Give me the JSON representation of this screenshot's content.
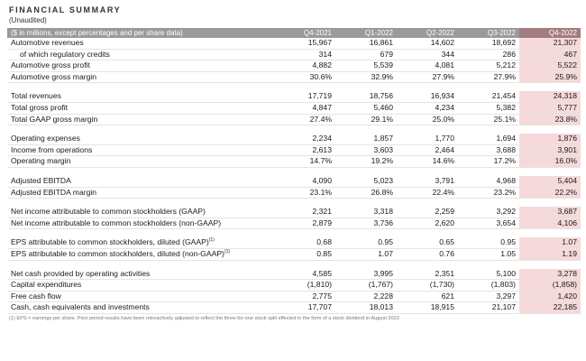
{
  "title": "FINANCIAL SUMMARY",
  "subtitle": "(Unaudited)",
  "header": {
    "label": "($ in millions, except percentages and per share data)",
    "periods": [
      "Q4-2021",
      "Q1-2022",
      "Q2-2022",
      "Q3-2022",
      "Q4-2022"
    ]
  },
  "groups": [
    {
      "rows": [
        {
          "label": "Automotive revenues",
          "values": [
            "15,967",
            "16,861",
            "14,602",
            "18,692",
            "21,307"
          ]
        },
        {
          "label": "of which regulatory credits",
          "indent": true,
          "values": [
            "314",
            "679",
            "344",
            "286",
            "467"
          ]
        },
        {
          "label": "Automotive gross profit",
          "values": [
            "4,882",
            "5,539",
            "4,081",
            "5,212",
            "5,522"
          ]
        },
        {
          "label": "Automotive gross margin",
          "values": [
            "30.6%",
            "32.9%",
            "27.9%",
            "27.9%",
            "25.9%"
          ]
        }
      ]
    },
    {
      "rows": [
        {
          "label": "Total revenues",
          "values": [
            "17,719",
            "18,756",
            "16,934",
            "21,454",
            "24,318"
          ]
        },
        {
          "label": "Total gross profit",
          "values": [
            "4,847",
            "5,460",
            "4,234",
            "5,382",
            "5,777"
          ]
        },
        {
          "label": "Total GAAP gross margin",
          "values": [
            "27.4%",
            "29.1%",
            "25.0%",
            "25.1%",
            "23.8%"
          ]
        }
      ]
    },
    {
      "rows": [
        {
          "label": "Operating expenses",
          "values": [
            "2,234",
            "1,857",
            "1,770",
            "1,694",
            "1,876"
          ]
        },
        {
          "label": "Income from operations",
          "values": [
            "2,613",
            "3,603",
            "2,464",
            "3,688",
            "3,901"
          ]
        },
        {
          "label": "Operating margin",
          "values": [
            "14.7%",
            "19.2%",
            "14.6%",
            "17.2%",
            "16.0%"
          ]
        }
      ]
    },
    {
      "rows": [
        {
          "label": "Adjusted EBITDA",
          "values": [
            "4,090",
            "5,023",
            "3,791",
            "4,968",
            "5,404"
          ]
        },
        {
          "label": "Adjusted EBITDA margin",
          "values": [
            "23.1%",
            "26.8%",
            "22.4%",
            "23.2%",
            "22.2%"
          ]
        }
      ]
    },
    {
      "rows": [
        {
          "label": "Net income attributable to common stockholders (GAAP)",
          "values": [
            "2,321",
            "3,318",
            "2,259",
            "3,292",
            "3,687"
          ]
        },
        {
          "label": "Net income attributable to common stockholders (non-GAAP)",
          "values": [
            "2,879",
            "3,736",
            "2,620",
            "3,654",
            "4,106"
          ]
        }
      ]
    },
    {
      "rows": [
        {
          "label": "EPS attributable to common stockholders, diluted (GAAP)",
          "sup": "(1)",
          "values": [
            "0.68",
            "0.95",
            "0.65",
            "0.95",
            "1.07"
          ]
        },
        {
          "label": "EPS attributable to common stockholders, diluted (non-GAAP)",
          "sup": "(1)",
          "values": [
            "0.85",
            "1.07",
            "0.76",
            "1.05",
            "1.19"
          ]
        }
      ]
    },
    {
      "rows": [
        {
          "label": "Net cash provided by operating activities",
          "values": [
            "4,585",
            "3,995",
            "2,351",
            "5,100",
            "3,278"
          ]
        },
        {
          "label": "Capital expenditures",
          "values": [
            "(1,810)",
            "(1,767)",
            "(1,730)",
            "(1,803)",
            "(1,858)"
          ]
        },
        {
          "label": "Free cash flow",
          "values": [
            "2,775",
            "2,228",
            "621",
            "3,297",
            "1,420"
          ]
        },
        {
          "label": "Cash, cash equivalents and investments",
          "values": [
            "17,707",
            "18,013",
            "18,915",
            "21,107",
            "22,185"
          ]
        }
      ]
    }
  ],
  "footnote": "(1) EPS = earnings per share. Prior period results have been retroactively adjusted to reflect the three-for-one stock split effected in the form of a stock dividend in August 2022.",
  "colors": {
    "header_bg": "#9a9a9a",
    "header_highlight_bg": "#a37c7f",
    "highlight_cell_bg": "#f6d9da"
  }
}
